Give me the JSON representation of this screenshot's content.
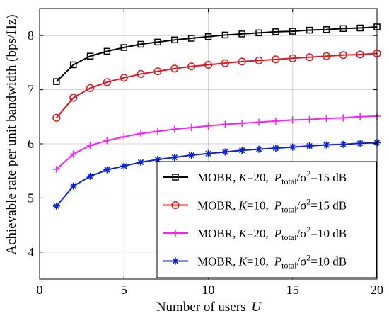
{
  "chart_data": {
    "type": "line",
    "x": [
      1,
      2,
      3,
      4,
      5,
      6,
      7,
      8,
      9,
      10,
      11,
      12,
      13,
      14,
      15,
      16,
      17,
      18,
      19,
      20
    ],
    "xlim": [
      0,
      20
    ],
    "ylim": [
      3.5,
      8.5
    ],
    "xticks": [
      0,
      5,
      10,
      15,
      20
    ],
    "yticks": [
      4,
      5,
      6,
      7,
      8
    ],
    "xlabel_main": "Number of users",
    "xlabel_var": "U",
    "ylabel": "Achievable rate per unit bandwidth (bps/Hz)",
    "grid": true,
    "legend_position": "bottom-right",
    "series": [
      {
        "name": "MOBR, K=20, P_total/σ²=15 dB",
        "legend": {
          "pre": "MOBR, ",
          "k_var": "K",
          "k_val": "=20,",
          "p_var": "P",
          "p_sub": "total",
          "mid": "/σ",
          "sup": "2",
          "post": "=15 dB"
        },
        "color": "#000000",
        "marker": "square",
        "values": [
          7.15,
          7.46,
          7.62,
          7.71,
          7.78,
          7.84,
          7.88,
          7.92,
          7.95,
          7.98,
          8.01,
          8.03,
          8.05,
          8.07,
          8.08,
          8.1,
          8.11,
          8.13,
          8.14,
          8.16
        ]
      },
      {
        "name": "MOBR, K=10, P_total/σ²=15 dB",
        "legend": {
          "pre": "MOBR, ",
          "k_var": "K",
          "k_val": "=10,",
          "p_var": "P",
          "p_sub": "total",
          "mid": "/σ",
          "sup": "2",
          "post": "=15 dB"
        },
        "color": "#e8141c",
        "marker": "circle",
        "values": [
          6.48,
          6.85,
          7.03,
          7.14,
          7.22,
          7.29,
          7.34,
          7.39,
          7.43,
          7.46,
          7.49,
          7.52,
          7.54,
          7.56,
          7.58,
          7.6,
          7.62,
          7.64,
          7.65,
          7.67
        ]
      },
      {
        "name": "MOBR, K=20, P_total/σ²=10 dB",
        "legend": {
          "pre": "MOBR, ",
          "k_var": "K",
          "k_val": "=20,",
          "p_var": "P",
          "p_sub": "total",
          "mid": "/σ",
          "sup": "2",
          "post": "=10 dB"
        },
        "color": "#ff1aff",
        "marker": "plus",
        "values": [
          5.53,
          5.81,
          5.97,
          6.06,
          6.13,
          6.19,
          6.23,
          6.27,
          6.3,
          6.33,
          6.36,
          6.38,
          6.4,
          6.42,
          6.44,
          6.45,
          6.47,
          6.48,
          6.5,
          6.51
        ]
      },
      {
        "name": "MOBR, K=10, P_total/σ²=10 dB",
        "legend": {
          "pre": "MOBR, ",
          "k_var": "K",
          "k_val": "=10,",
          "p_var": "P",
          "p_sub": "total",
          "mid": "/σ",
          "sup": "2",
          "post": "=10 dB"
        },
        "color": "#0a21d6",
        "marker": "star",
        "values": [
          4.85,
          5.22,
          5.4,
          5.52,
          5.59,
          5.66,
          5.71,
          5.75,
          5.79,
          5.82,
          5.85,
          5.88,
          5.9,
          5.92,
          5.94,
          5.96,
          5.98,
          5.99,
          6.01,
          6.02
        ]
      }
    ]
  }
}
